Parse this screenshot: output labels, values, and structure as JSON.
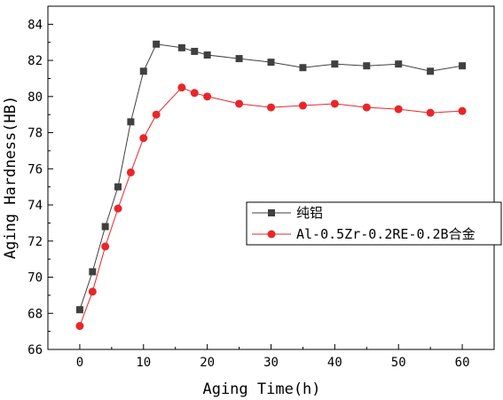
{
  "chart_data": {
    "type": "line",
    "xlabel": "Aging Time(h)",
    "ylabel": "Aging Hardness(HB)",
    "xlim": [
      -5,
      65
    ],
    "ylim": [
      66,
      85
    ],
    "xticks": [
      0,
      10,
      20,
      30,
      40,
      50,
      60
    ],
    "yticks": [
      66,
      68,
      70,
      72,
      74,
      76,
      78,
      80,
      82,
      84
    ],
    "grid": false,
    "legend_position": "center-right",
    "series": [
      {
        "name": "纯铝",
        "color": "#404040",
        "marker": "square",
        "x": [
          0,
          2,
          4,
          6,
          8,
          10,
          12,
          16,
          18,
          20,
          25,
          30,
          35,
          40,
          45,
          50,
          55,
          60
        ],
        "y": [
          68.2,
          70.3,
          72.8,
          75.0,
          78.6,
          81.4,
          82.9,
          82.7,
          82.5,
          82.3,
          82.1,
          81.9,
          81.6,
          81.8,
          81.7,
          81.8,
          81.4,
          81.7
        ]
      },
      {
        "name": "Al-0.5Zr-0.2RE-0.2B合金",
        "color": "#e8262a",
        "marker": "circle",
        "x": [
          0,
          2,
          4,
          6,
          8,
          10,
          12,
          16,
          18,
          20,
          25,
          30,
          35,
          40,
          45,
          50,
          55,
          60
        ],
        "y": [
          67.3,
          69.2,
          71.7,
          73.8,
          75.8,
          77.7,
          79.0,
          80.5,
          80.2,
          80.0,
          79.6,
          79.4,
          79.5,
          79.6,
          79.4,
          79.3,
          79.1,
          79.2
        ]
      }
    ]
  }
}
